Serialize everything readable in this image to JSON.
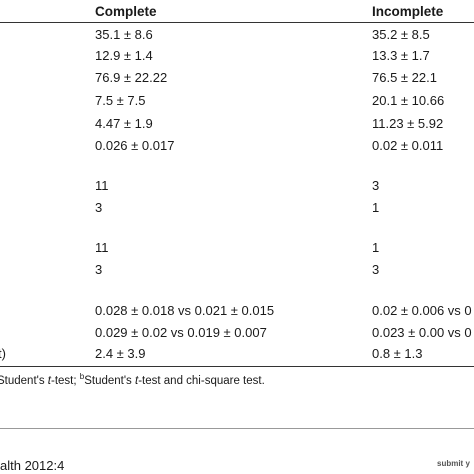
{
  "table": {
    "header": [
      "Complete",
      "Incomplete"
    ],
    "rows": [
      [
        "35.1 ± 8.6",
        "35.2 ± 8.5"
      ],
      [
        "12.9 ± 1.4",
        "13.3 ± 1.7"
      ],
      [
        "76.9 ± 22.22",
        "76.5 ± 22.1"
      ],
      [
        "7.5 ± 7.5",
        "20.1 ± 10.66"
      ],
      [
        "4.47 ± 1.9",
        "11.23 ± 5.92"
      ],
      [
        "0.026 ± 0.017",
        "0.02 ± 0.011"
      ],
      [
        "11",
        "3"
      ],
      [
        "3",
        "1"
      ],
      [
        "11",
        "1"
      ],
      [
        "3",
        "3"
      ],
      [
        "0.028 ± 0.018 vs 0.021 ± 0.015",
        "0.02 ± 0.006 vs 0"
      ],
      [
        "0.029 ± 0.02 vs 0.019 ± 0.007",
        "0.023 ± 0.00 vs 0"
      ],
      [
        "2.4 ± 3.9",
        "0.8 ± 1.3"
      ]
    ],
    "stub_label": "t)",
    "footnote": [
      "Student's ",
      "t",
      "-test; ",
      "b",
      "Student's ",
      "t",
      "-test and chi-square test."
    ]
  },
  "footer": {
    "journal": "alth 2012:4",
    "submit": "submit y"
  }
}
